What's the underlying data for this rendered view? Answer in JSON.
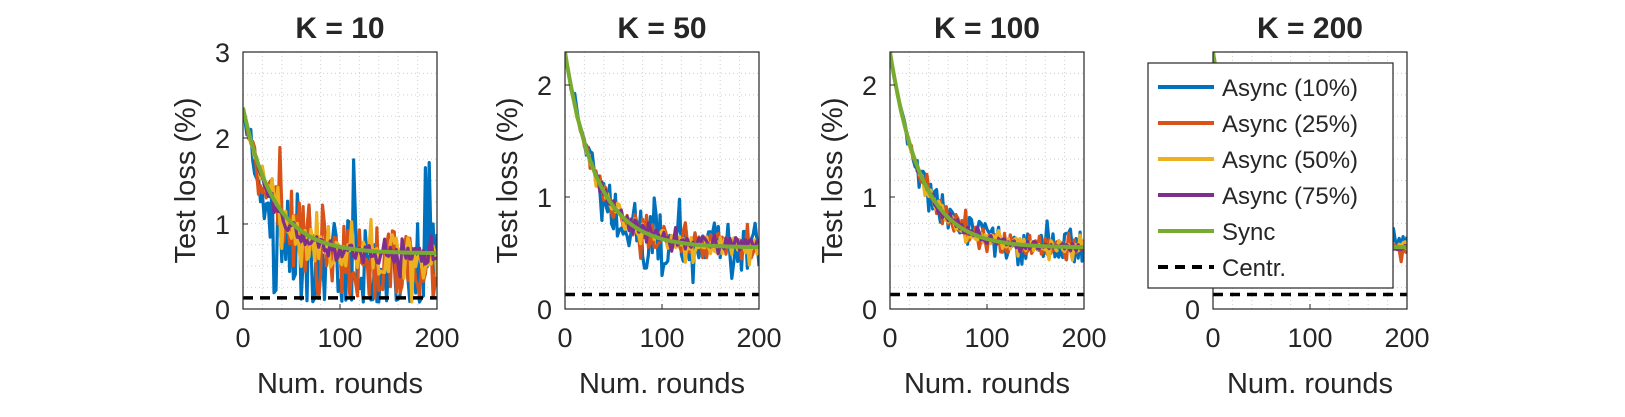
{
  "chart_data": [
    {
      "type": "line",
      "title": "K = 10",
      "xlabel": "Num. rounds",
      "ylabel": "Test loss (%)",
      "xlim": [
        0,
        200
      ],
      "ylim": [
        0,
        3
      ],
      "xticks": [
        "0",
        "100",
        "200"
      ],
      "yticks": [
        "0",
        "1",
        "2",
        "3"
      ],
      "grid": true,
      "legend": "none",
      "series": [
        {
          "name": "Async (10%)",
          "color": "#0072BD",
          "start": 2.35,
          "end": 0.35,
          "noise": 0.65
        },
        {
          "name": "Async (25%)",
          "color": "#D95319",
          "start": 2.35,
          "end": 0.55,
          "noise": 0.45
        },
        {
          "name": "Async (50%)",
          "color": "#EDB120",
          "start": 2.35,
          "end": 0.55,
          "noise": 0.22
        },
        {
          "name": "Async (75%)",
          "color": "#7E2F8E",
          "start": 2.35,
          "end": 0.6,
          "noise": 0.12
        },
        {
          "name": "Sync",
          "color": "#77AC30",
          "start": 2.35,
          "end": 0.65,
          "noise": 0.0
        },
        {
          "name": "Centr.",
          "color": "#000000",
          "constant": 0.13
        }
      ]
    },
    {
      "type": "line",
      "title": "K = 50",
      "xlabel": "Num. rounds",
      "ylabel": "Test loss (%)",
      "xlim": [
        0,
        200
      ],
      "ylim": [
        0,
        2.3
      ],
      "xticks": [
        "0",
        "100",
        "200"
      ],
      "yticks": [
        "0",
        "1",
        "2"
      ],
      "grid": true,
      "legend": "none",
      "series": [
        {
          "name": "Async (10%)",
          "color": "#0072BD",
          "start": 2.3,
          "end": 0.55,
          "noise": 0.22
        },
        {
          "name": "Async (25%)",
          "color": "#D95319",
          "start": 2.3,
          "end": 0.55,
          "noise": 0.12
        },
        {
          "name": "Async (50%)",
          "color": "#EDB120",
          "start": 2.3,
          "end": 0.55,
          "noise": 0.08
        },
        {
          "name": "Async (75%)",
          "color": "#7E2F8E",
          "start": 2.3,
          "end": 0.57,
          "noise": 0.05
        },
        {
          "name": "Sync",
          "color": "#77AC30",
          "start": 2.3,
          "end": 0.55,
          "noise": 0.0
        },
        {
          "name": "Centr.",
          "color": "#000000",
          "constant": 0.13
        }
      ]
    },
    {
      "type": "line",
      "title": "K = 100",
      "xlabel": "Num. rounds",
      "ylabel": "Test loss (%)",
      "xlim": [
        0,
        200
      ],
      "ylim": [
        0,
        2.3
      ],
      "xticks": [
        "0",
        "100",
        "200"
      ],
      "yticks": [
        "0",
        "1",
        "2"
      ],
      "grid": true,
      "legend": "none",
      "series": [
        {
          "name": "Async (10%)",
          "color": "#0072BD",
          "start": 2.3,
          "end": 0.55,
          "noise": 0.14
        },
        {
          "name": "Async (25%)",
          "color": "#D95319",
          "start": 2.3,
          "end": 0.55,
          "noise": 0.09
        },
        {
          "name": "Async (50%)",
          "color": "#EDB120",
          "start": 2.3,
          "end": 0.55,
          "noise": 0.06
        },
        {
          "name": "Async (75%)",
          "color": "#7E2F8E",
          "start": 2.3,
          "end": 0.55,
          "noise": 0.04
        },
        {
          "name": "Sync",
          "color": "#77AC30",
          "start": 2.3,
          "end": 0.55,
          "noise": 0.0
        },
        {
          "name": "Centr.",
          "color": "#000000",
          "constant": 0.13
        }
      ]
    },
    {
      "type": "line",
      "title": "K = 200",
      "xlabel": "Num. rounds",
      "ylabel": "",
      "xlim": [
        0,
        200
      ],
      "ylim": [
        0,
        2.3
      ],
      "xticks": [
        "0",
        "100",
        "200"
      ],
      "yticks": [
        "0"
      ],
      "grid": true,
      "legend": "inside (overlapping plot area)",
      "series": [
        {
          "name": "Async (10%)",
          "color": "#0072BD",
          "start": 2.3,
          "end": 0.55,
          "noise": 0.1
        },
        {
          "name": "Async (25%)",
          "color": "#D95319",
          "start": 2.3,
          "end": 0.55,
          "noise": 0.07
        },
        {
          "name": "Async (50%)",
          "color": "#EDB120",
          "start": 2.3,
          "end": 0.55,
          "noise": 0.05
        },
        {
          "name": "Async (75%)",
          "color": "#7E2F8E",
          "start": 2.3,
          "end": 0.55,
          "noise": 0.03
        },
        {
          "name": "Sync",
          "color": "#77AC30",
          "start": 2.3,
          "end": 0.55,
          "noise": 0.0
        },
        {
          "name": "Centr.",
          "color": "#000000",
          "constant": 0.13
        }
      ]
    }
  ],
  "legend": {
    "entries": [
      {
        "label": "Async (10%)",
        "color": "#0072BD",
        "style": "solid"
      },
      {
        "label": "Async (25%)",
        "color": "#D95319",
        "style": "solid"
      },
      {
        "label": "Async (50%)",
        "color": "#EDB120",
        "style": "solid"
      },
      {
        "label": "Async (75%)",
        "color": "#7E2F8E",
        "style": "solid"
      },
      {
        "label": "Sync",
        "color": "#77AC30",
        "style": "solid"
      },
      {
        "label": "Centr.",
        "color": "#000000",
        "style": "dashed"
      }
    ]
  }
}
